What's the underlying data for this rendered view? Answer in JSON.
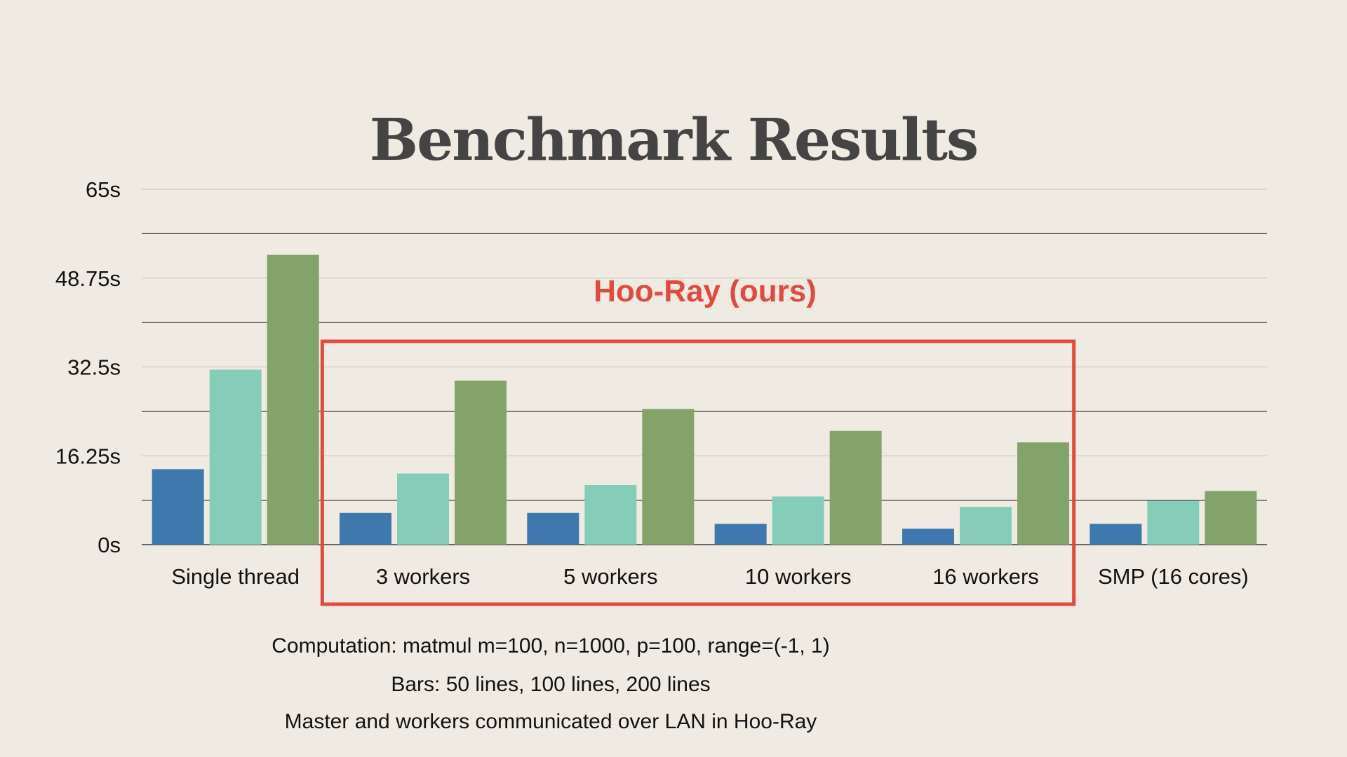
{
  "chart_data": {
    "type": "bar",
    "title": "Benchmark Results",
    "categories": [
      "Single thread",
      "3 workers",
      "5 workers",
      "10 workers",
      "16 workers",
      "SMP (16 cores)"
    ],
    "series": [
      {
        "values": [
          13.8,
          5.8,
          5.8,
          3.8,
          2.9,
          3.8
        ]
      },
      {
        "values": [
          32.0,
          13.0,
          10.9,
          8.8,
          6.9,
          8.0
        ]
      },
      {
        "values": [
          53.0,
          30.0,
          24.8,
          20.8,
          18.7,
          9.8
        ]
      }
    ],
    "yticks": [
      "0s",
      "16.25s",
      "32.5s",
      "48.75s",
      "65s"
    ],
    "ylim": [
      0,
      65
    ],
    "grid": true,
    "annotation": {
      "label": "Hoo-Ray (ours)",
      "group_start": 1,
      "group_end": 4
    },
    "notes": [
      "Computation: matmul m=100, n=1000, p=100, range=(-1, 1)",
      "Bars: 50 lines, 100 lines, 200 lines",
      "Master and workers communicated over LAN in Hoo-Ray"
    ]
  },
  "colors": {
    "background": "#f0ebe2",
    "series": [
      "#3e78ad",
      "#86cdb9",
      "#84a36b"
    ],
    "annotation": "#e04a3f",
    "grid_major": "#3a3a3a",
    "grid_minor": "#c6c2ba"
  }
}
